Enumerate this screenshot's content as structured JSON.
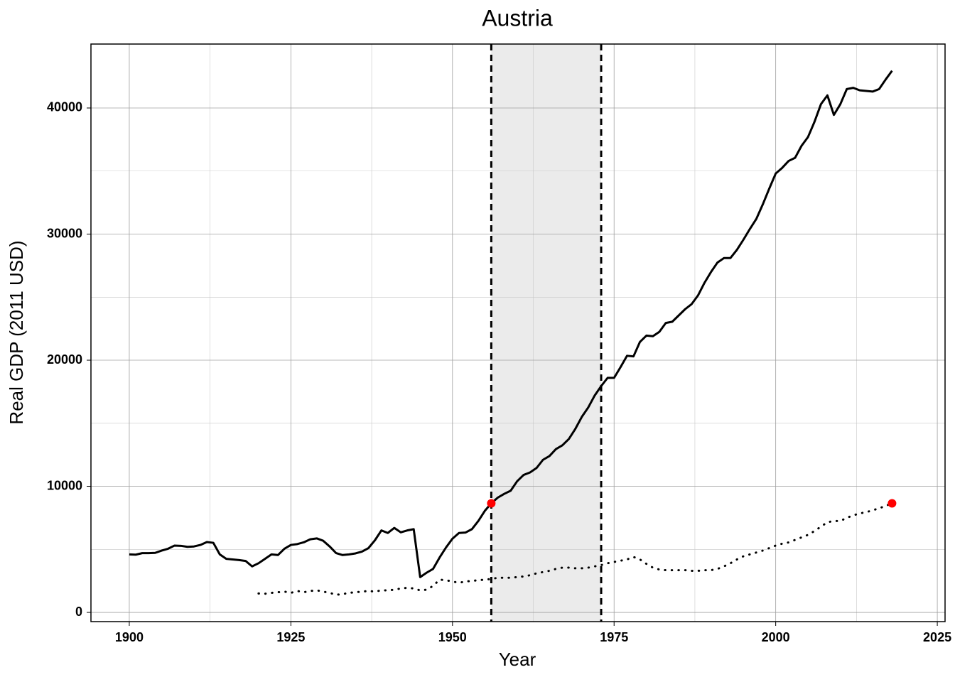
{
  "chart_data": {
    "type": "line",
    "title": "Austria",
    "x_label": "Year",
    "y_label": "Real GDP (2011 USD)",
    "xlim": [
      1894.07,
      2026.2
    ],
    "ylim": [
      -730,
      45070
    ],
    "xticks": [
      1900,
      1925,
      1950,
      1975,
      2000,
      2025
    ],
    "yticks": [
      0,
      10000,
      20000,
      30000,
      40000
    ],
    "xminorticks": [
      1912.5,
      1937.5,
      1962.5,
      1987.5,
      2012.5
    ],
    "yminorticks": [
      5000,
      15000,
      25000,
      35000
    ],
    "grid": true,
    "shaded_region": {
      "x": [
        1956,
        1973
      ],
      "color": "#ebebeb"
    },
    "vlines": {
      "x": [
        1956,
        1973
      ],
      "color": "#000000",
      "style": "dashed"
    },
    "series": [
      {
        "color": "#000000",
        "style": "solid",
        "x": [
          1900,
          1901,
          1902,
          1903,
          1904,
          1905,
          1906,
          1907,
          1908,
          1909,
          1910,
          1911,
          1912,
          1913,
          1914,
          1915,
          1916,
          1917,
          1918,
          1919,
          1920,
          1921,
          1922,
          1923,
          1924,
          1925,
          1926,
          1927,
          1928,
          1929,
          1930,
          1931,
          1932,
          1933,
          1934,
          1935,
          1936,
          1937,
          1938,
          1939,
          1940,
          1941,
          1942,
          1943,
          1944,
          1945,
          1946,
          1947,
          1948,
          1949,
          1950,
          1951,
          1952,
          1953,
          1954,
          1955,
          1956,
          1957,
          1958,
          1959,
          1960,
          1961,
          1962,
          1963,
          1964,
          1965,
          1966,
          1967,
          1968,
          1969,
          1970,
          1971,
          1972,
          1973,
          1974,
          1975,
          1976,
          1977,
          1978,
          1979,
          1980,
          1981,
          1982,
          1983,
          1984,
          1985,
          1986,
          1987,
          1988,
          1989,
          1990,
          1991,
          1992,
          1993,
          1994,
          1995,
          1996,
          1997,
          1998,
          1999,
          2000,
          2001,
          2002,
          2003,
          2004,
          2005,
          2006,
          2007,
          2008,
          2009,
          2010,
          2011,
          2012,
          2013,
          2014,
          2015,
          2016,
          2017,
          2018
        ],
        "values": [
          4600,
          4580,
          4700,
          4700,
          4720,
          4900,
          5050,
          5300,
          5280,
          5200,
          5230,
          5350,
          5580,
          5520,
          4600,
          4250,
          4200,
          4150,
          4080,
          3650,
          3900,
          4250,
          4600,
          4550,
          5050,
          5350,
          5420,
          5560,
          5800,
          5870,
          5680,
          5230,
          4700,
          4550,
          4600,
          4680,
          4820,
          5100,
          5720,
          6500,
          6300,
          6700,
          6350,
          6500,
          6600,
          2800,
          3150,
          3450,
          4350,
          5150,
          5850,
          6300,
          6330,
          6600,
          7250,
          8050,
          8650,
          9100,
          9400,
          9650,
          10400,
          10900,
          11100,
          11450,
          12100,
          12400,
          12950,
          13250,
          13750,
          14550,
          15500,
          16250,
          17200,
          17950,
          18600,
          18600,
          19450,
          20350,
          20300,
          21450,
          21950,
          21900,
          22250,
          22950,
          23050,
          23550,
          24050,
          24450,
          25150,
          26150,
          27000,
          27750,
          28100,
          28100,
          28750,
          29550,
          30400,
          31200,
          32350,
          33600,
          34800,
          35250,
          35800,
          36050,
          37000,
          37700,
          38900,
          40300,
          41000,
          39450,
          40300,
          41500,
          41600,
          41400,
          41350,
          41300,
          41500,
          42250,
          42950
        ]
      },
      {
        "color": "#000000",
        "style": "dotted",
        "x": [
          1920,
          1921,
          1922,
          1923,
          1924,
          1925,
          1926,
          1927,
          1928,
          1929,
          1930,
          1931,
          1932,
          1933,
          1934,
          1935,
          1936,
          1937,
          1938,
          1939,
          1940,
          1941,
          1942,
          1943,
          1944,
          1945,
          1946,
          1947,
          1948,
          1949,
          1950,
          1951,
          1952,
          1953,
          1954,
          1955,
          1956,
          1957,
          1958,
          1959,
          1960,
          1961,
          1962,
          1963,
          1964,
          1965,
          1966,
          1967,
          1968,
          1969,
          1970,
          1971,
          1972,
          1973,
          1974,
          1975,
          1976,
          1977,
          1978,
          1979,
          1980,
          1981,
          1982,
          1983,
          1984,
          1985,
          1986,
          1987,
          1988,
          1989,
          1990,
          1991,
          1992,
          1993,
          1994,
          1995,
          1996,
          1997,
          1998,
          1999,
          2000,
          2001,
          2002,
          2003,
          2004,
          2005,
          2006,
          2007,
          2008,
          2009,
          2010,
          2011,
          2012,
          2013,
          2014,
          2015,
          2016,
          2017,
          2018
        ],
        "values": [
          1500,
          1480,
          1550,
          1600,
          1650,
          1550,
          1700,
          1600,
          1700,
          1750,
          1650,
          1550,
          1400,
          1450,
          1550,
          1600,
          1650,
          1700,
          1650,
          1750,
          1750,
          1800,
          1900,
          1950,
          1900,
          1750,
          1800,
          2100,
          2600,
          2550,
          2450,
          2350,
          2450,
          2500,
          2550,
          2600,
          2650,
          2750,
          2750,
          2750,
          2800,
          2850,
          2950,
          3100,
          3200,
          3300,
          3450,
          3550,
          3550,
          3500,
          3500,
          3550,
          3650,
          3750,
          3900,
          4000,
          4100,
          4200,
          4400,
          4200,
          3850,
          3550,
          3400,
          3350,
          3350,
          3350,
          3350,
          3300,
          3300,
          3350,
          3350,
          3450,
          3650,
          3900,
          4200,
          4450,
          4600,
          4750,
          4900,
          5100,
          5300,
          5450,
          5550,
          5750,
          5950,
          6150,
          6450,
          6800,
          7150,
          7250,
          7250,
          7500,
          7700,
          7850,
          7950,
          8100,
          8250,
          8450,
          8650
        ]
      }
    ],
    "points": {
      "color": "#ff0000",
      "x": [
        1956,
        2018
      ],
      "values": [
        8650,
        8650
      ]
    }
  }
}
